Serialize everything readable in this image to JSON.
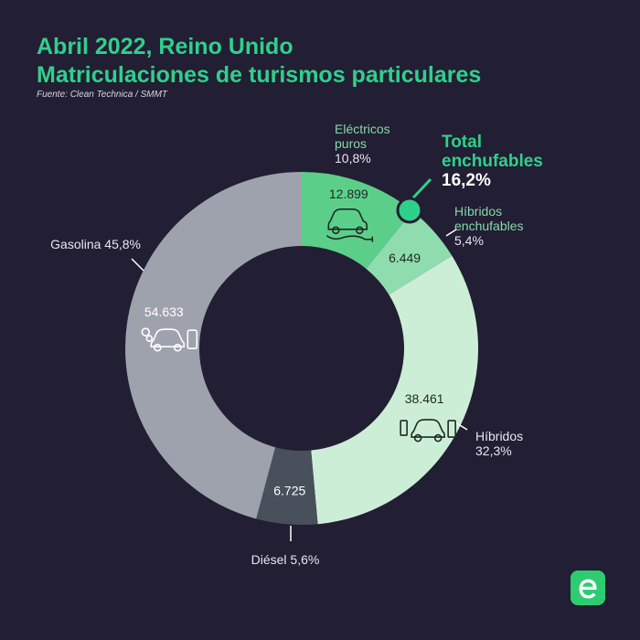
{
  "header": {
    "title_line1": "Abril 2022, Reino Unido",
    "title_line2": "Matriculaciones de turismos particulares",
    "source": "Fuente: Clean Technica / SMMT"
  },
  "colors": {
    "background": "#221e33",
    "accent": "#2fd08c",
    "electricos": "#5bcf8a",
    "hibridos_enchufables": "#8fdcae",
    "hibridos": "#cdeed6",
    "diesel": "#48505c",
    "gasolina": "#9ea2ad",
    "label_green": "#86d9aa",
    "label_white": "#e8e6f0"
  },
  "highlight": {
    "label_line1": "Total",
    "label_line2": "enchufables",
    "value": "16,2%"
  },
  "chart_data": {
    "type": "pie",
    "subtype": "donut",
    "title": "Abril 2022, Reino Unido — Matriculaciones de turismos particulares",
    "total_plugin_percent": 16.2,
    "slices": [
      {
        "key": "electricos",
        "name_lines": [
          "Eléctricos",
          "puros"
        ],
        "pct_label": "10,8%",
        "percent": 10.8,
        "value": 12899,
        "value_label": "12.899",
        "icon": "electric-car-plug-icon",
        "color": "#5bcf8a"
      },
      {
        "key": "hibridos_enchufables",
        "name_lines": [
          "Híbridos",
          "enchufables"
        ],
        "pct_label": "5,4%",
        "percent": 5.4,
        "value": 6449,
        "value_label": "6.449",
        "icon": "",
        "color": "#8fdcae"
      },
      {
        "key": "hibridos",
        "name_lines": [
          "Híbridos"
        ],
        "pct_label": "32,3%",
        "percent": 32.3,
        "value": 38461,
        "value_label": "38.461",
        "icon": "hybrid-car-icon",
        "color": "#cdeed6"
      },
      {
        "key": "diesel",
        "name_lines": [
          "Diésel 5,6%"
        ],
        "pct_label": "",
        "percent": 5.6,
        "value": 6725,
        "value_label": "6.725",
        "icon": "",
        "color": "#48505c"
      },
      {
        "key": "gasolina",
        "name_lines": [
          "Gasolina 45,8%"
        ],
        "pct_label": "",
        "percent": 45.8,
        "value": 54633,
        "value_label": "54.633",
        "icon": "gasoline-car-icon",
        "color": "#9ea2ad"
      }
    ]
  }
}
